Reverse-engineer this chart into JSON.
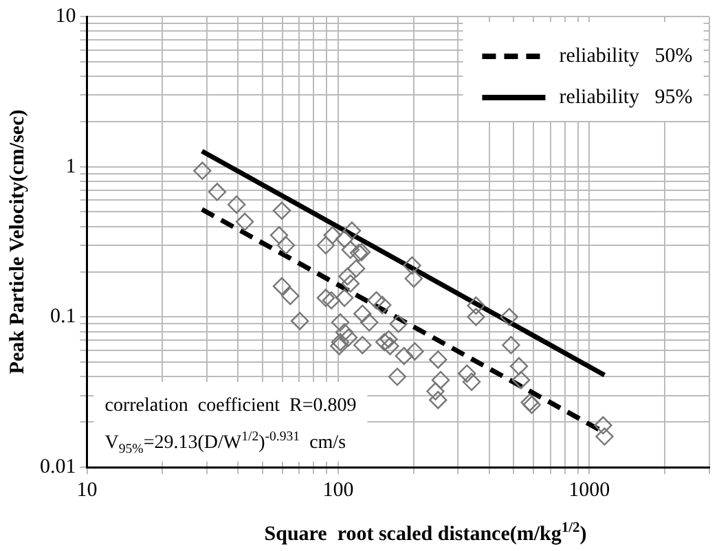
{
  "chart_data": {
    "type": "scatter",
    "xlabel": "Square  root scaled distance(m/kg$^{1/2}$)",
    "ylabel": "Peak Particle Velocity(cm/sec)",
    "log": "xy",
    "grid": true,
    "legend": "top right",
    "xlim": [
      10,
      3000
    ],
    "ylim": [
      0.01,
      10
    ],
    "xticks": [
      10,
      {
        "value": 20,
        "label": null
      },
      {
        "value": 30,
        "label": null
      },
      {
        "value": 40,
        "label": null
      },
      {
        "value": 50,
        "label": null
      },
      {
        "value": 60,
        "label": null
      },
      {
        "value": 70,
        "label": null
      },
      {
        "value": 80,
        "label": null
      },
      {
        "value": 90,
        "label": null
      },
      100,
      {
        "value": 200,
        "label": null
      },
      {
        "value": 300,
        "label": null
      },
      {
        "value": 400,
        "label": null
      },
      {
        "value": 500,
        "label": null
      },
      {
        "value": 600,
        "label": null
      },
      {
        "value": 700,
        "label": null
      },
      {
        "value": 800,
        "label": null
      },
      {
        "value": 900,
        "label": null
      },
      1000,
      {
        "value": 2000,
        "label": null
      },
      {
        "value": 3000,
        "label": null
      }
    ],
    "yticks": [
      0.01,
      {
        "value": 0.02,
        "label": null
      },
      {
        "value": 0.03,
        "label": null
      },
      {
        "value": 0.04,
        "label": null
      },
      {
        "value": 0.05,
        "label": null
      },
      {
        "value": 0.06,
        "label": null
      },
      {
        "value": 0.07,
        "label": null
      },
      {
        "value": 0.08,
        "label": null
      },
      {
        "value": 0.09,
        "label": null
      },
      0.1,
      {
        "value": 0.2,
        "label": null
      },
      {
        "value": 0.3,
        "label": null
      },
      {
        "value": 0.4,
        "label": null
      },
      {
        "value": 0.5,
        "label": null
      },
      {
        "value": 0.6,
        "label": null
      },
      {
        "value": 0.7,
        "label": null
      },
      {
        "value": 0.8,
        "label": null
      },
      {
        "value": 0.9,
        "label": null
      },
      1,
      {
        "value": 2,
        "label": null
      },
      {
        "value": 3,
        "label": null
      },
      {
        "value": 4,
        "label": null
      },
      {
        "value": 5,
        "label": null
      },
      {
        "value": 6,
        "label": null
      },
      {
        "value": 7,
        "label": null
      },
      {
        "value": 8,
        "label": null
      },
      {
        "value": 9,
        "label": null
      },
      10
    ],
    "annotations": [
      "correlation  coefficient  R=0.809",
      "V$_{95%}$=29.13(D/W$^{1/2}$)$^{-0.931}$  cm/s"
    ],
    "series": [
      {
        "marker": "diamond",
        "color": "#777777",
        "x": [
          28.8,
          33,
          39.4,
          42.5,
          59.7,
          58.2,
          62,
          89.3,
          95,
          106,
          113.5,
          112,
          124,
          118,
          59.7,
          64.5,
          70.4,
          89.3,
          94,
          106,
          109,
          112,
          102,
          106,
          102,
          101,
          110,
          125,
          125,
          133,
          142,
          153,
          121,
          150,
          174,
          159,
          161,
          183,
          202,
          172,
          197,
          200,
          250,
          256,
          244,
          250,
          326,
          340,
          354,
          354,
          480,
          488,
          525,
          535,
          580,
          590,
          1135,
          1150
        ],
        "values": [
          0.94,
          0.68,
          0.56,
          0.43,
          0.51,
          0.35,
          0.3,
          0.3,
          0.35,
          0.33,
          0.375,
          0.28,
          0.27,
          0.21,
          0.16,
          0.138,
          0.094,
          0.134,
          0.129,
          0.134,
          0.186,
          0.167,
          0.092,
          0.079,
          0.068,
          0.064,
          0.073,
          0.065,
          0.105,
          0.092,
          0.129,
          0.068,
          0.267,
          0.12,
          0.09,
          0.071,
          0.064,
          0.055,
          0.059,
          0.04,
          0.22,
          0.18,
          0.052,
          0.038,
          0.032,
          0.028,
          0.042,
          0.037,
          0.119,
          0.1,
          0.1,
          0.065,
          0.047,
          0.038,
          0.027,
          0.026,
          0.019,
          0.016
        ]
      },
      {
        "type": "line",
        "name": "reliability   50%",
        "color": "#000000",
        "line_style": "dashed",
        "marker": "none",
        "x": [
          28.7,
          1150
        ],
        "values": [
          0.52,
          0.017
        ]
      },
      {
        "type": "line",
        "name": "reliability   95%",
        "color": "#000000",
        "line_style": "solid",
        "marker": "none",
        "x": [
          28.7,
          1150
        ],
        "values": [
          1.27,
          0.041
        ]
      }
    ]
  }
}
